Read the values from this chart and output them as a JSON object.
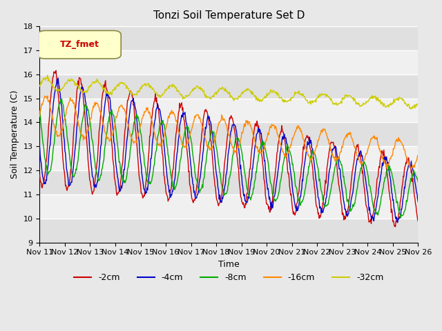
{
  "title": "Tonzi Soil Temperature Set D",
  "xlabel": "Time",
  "ylabel": "Soil Temperature (C)",
  "ylim": [
    9.0,
    18.0
  ],
  "yticks": [
    9.0,
    10.0,
    11.0,
    12.0,
    13.0,
    14.0,
    15.0,
    16.0,
    17.0,
    18.0
  ],
  "xtick_labels": [
    "Nov 11",
    "Nov 12",
    "Nov 13",
    "Nov 14",
    "Nov 15",
    "Nov 16",
    "Nov 17",
    "Nov 18",
    "Nov 19",
    "Nov 20",
    "Nov 21",
    "Nov 22",
    "Nov 23",
    "Nov 24",
    "Nov 25",
    "Nov 26"
  ],
  "legend_label": "TZ_fmet",
  "series_labels": [
    "-2cm",
    "-4cm",
    "-8cm",
    "-16cm",
    "-32cm"
  ],
  "series_colors": [
    "#cc0000",
    "#0000cc",
    "#00aa00",
    "#ff8800",
    "#cccc00"
  ],
  "background_color": "#e8e8e8",
  "plot_bg_color": "#f0f0f0",
  "n_days": 15,
  "points_per_day": 48
}
